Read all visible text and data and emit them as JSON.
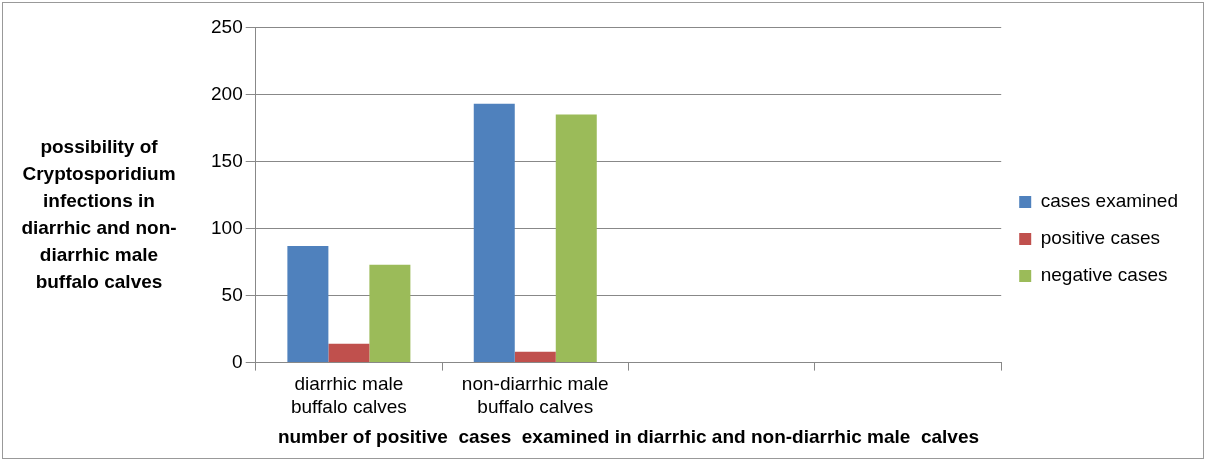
{
  "chart_data": {
    "type": "bar",
    "xlabel": "number of positive  cases  examined in diarrhic and non-diarrhic male  calves",
    "ylabel": "possibility of Cryptosporidium infections in diarrhic and non-diarrhic male buffalo calves",
    "categories": [
      "diarrhic male buffalo calves",
      "non-diarrhic male buffalo calves",
      null,
      null
    ],
    "series": [
      {
        "name": "cases examined",
        "color": "#4f81bd",
        "values": [
          87,
          193,
          null,
          null
        ]
      },
      {
        "name": "positive cases",
        "color": "#c0504d",
        "values": [
          14,
          8,
          null,
          null
        ]
      },
      {
        "name": "negative cases",
        "color": "#9bbb59",
        "values": [
          73,
          185,
          null,
          null
        ]
      }
    ],
    "ylim": [
      0,
      250
    ],
    "yticks": [
      0,
      50,
      100,
      150,
      200,
      250
    ],
    "grid": "y",
    "legend": "right"
  }
}
